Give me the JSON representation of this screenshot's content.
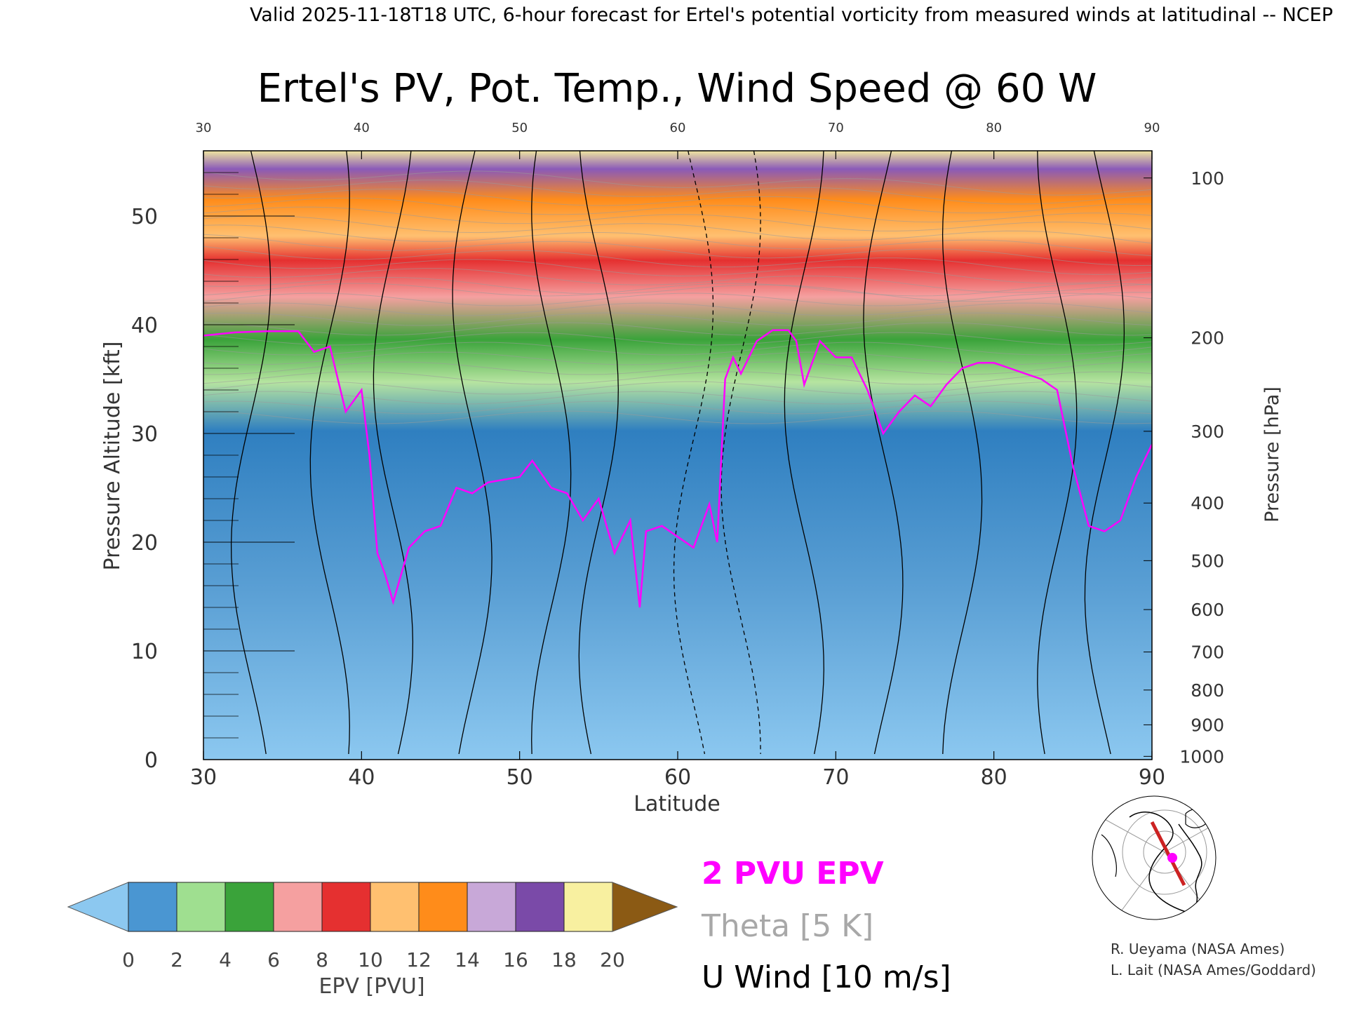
{
  "header": {
    "top_line": "Valid 2025-11-18T18 UTC, 6-hour forecast for Ertel's potential vorticity from measured winds at latitudinal -- NCEP"
  },
  "chart_data": {
    "type": "heatmap",
    "title": "Ertel's PV, Pot. Temp., Wind Speed @ 60 W",
    "xlabel": "Latitude",
    "ylabel": "Pressure Altitude [kft]",
    "ylabel_right": "Pressure [hPa]",
    "xlim": [
      30,
      90
    ],
    "ylim": [
      0,
      56
    ],
    "x_ticks": [
      "30",
      "40",
      "50",
      "60",
      "70",
      "80",
      "90"
    ],
    "y_ticks": [
      {
        "v": 0,
        "label": "0"
      },
      {
        "v": 10,
        "label": "10"
      },
      {
        "v": 20,
        "label": "20"
      },
      {
        "v": 30,
        "label": "30"
      },
      {
        "v": 40,
        "label": "40"
      },
      {
        "v": 50,
        "label": "50"
      }
    ],
    "pressure_ticks": [
      {
        "label": "100",
        "kft": 53.5
      },
      {
        "label": "200",
        "kft": 38.8
      },
      {
        "label": "300",
        "kft": 30.2
      },
      {
        "label": "400",
        "kft": 23.6
      },
      {
        "label": "500",
        "kft": 18.3
      },
      {
        "label": "600",
        "kft": 13.8
      },
      {
        "label": "700",
        "kft": 9.9
      },
      {
        "label": "800",
        "kft": 6.4
      },
      {
        "label": "900",
        "kft": 3.2
      },
      {
        "label": "1000",
        "kft": 0.3
      }
    ],
    "tropopause_2pvu": {
      "lat": [
        30,
        32,
        34,
        36,
        37,
        38,
        39,
        40,
        40.5,
        41,
        41.5,
        42,
        43,
        44,
        45,
        46,
        47,
        48,
        50,
        50.8,
        52,
        53,
        54,
        55,
        56,
        57,
        57.6,
        58,
        59,
        60,
        61,
        62,
        62.5,
        63,
        63.5,
        64,
        65,
        66,
        67,
        67.5,
        68,
        69,
        70,
        71,
        72,
        73,
        74,
        75,
        76,
        77,
        78,
        79,
        80,
        81,
        82,
        83,
        84,
        85,
        86,
        87,
        88,
        89,
        90
      ],
      "kft": [
        39,
        39.3,
        39.4,
        39.4,
        37.5,
        38,
        32,
        34,
        28,
        19,
        17,
        14.5,
        19.5,
        21,
        21.5,
        25,
        24.5,
        25.5,
        26,
        27.5,
        25,
        24.5,
        22,
        24,
        19,
        22,
        14,
        21,
        21.5,
        20.5,
        19.5,
        23.5,
        20,
        35,
        37,
        35.5,
        38.5,
        39.5,
        39.5,
        38.5,
        34.5,
        38.5,
        37,
        37,
        34,
        30,
        32,
        33.5,
        32.5,
        34.5,
        36,
        36.5,
        36.5,
        36,
        35.5,
        35,
        34,
        27,
        21.5,
        21,
        22,
        26,
        29
      ]
    },
    "colorbar": {
      "label": "EPV [PVU]",
      "ticks": [
        "0",
        "2",
        "4",
        "6",
        "8",
        "10",
        "12",
        "14",
        "16",
        "18",
        "20"
      ],
      "colors": [
        "#8cc8f0",
        "#4a96d2",
        "#9fdf90",
        "#3aa33a",
        "#f5a0a0",
        "#e53030",
        "#ffc070",
        "#ff8c1a",
        "#c8a8d8",
        "#7a4aa8",
        "#f8f0a0",
        "#8b5a14"
      ]
    },
    "legend": [
      {
        "label": "2 PVU EPV",
        "color": "#ff00ff"
      },
      {
        "label": "Theta [5 K]",
        "color": "#a8a8a8"
      },
      {
        "label": "U Wind [10 m/s]",
        "color": "#000000"
      }
    ]
  },
  "credits": {
    "line1": "R. Ueyama (NASA Ames)",
    "line2": "L. Lait (NASA Ames/Goddard)"
  },
  "locator_map": {
    "line_color": "#cc2222",
    "marker_color": "#ff00ff"
  }
}
